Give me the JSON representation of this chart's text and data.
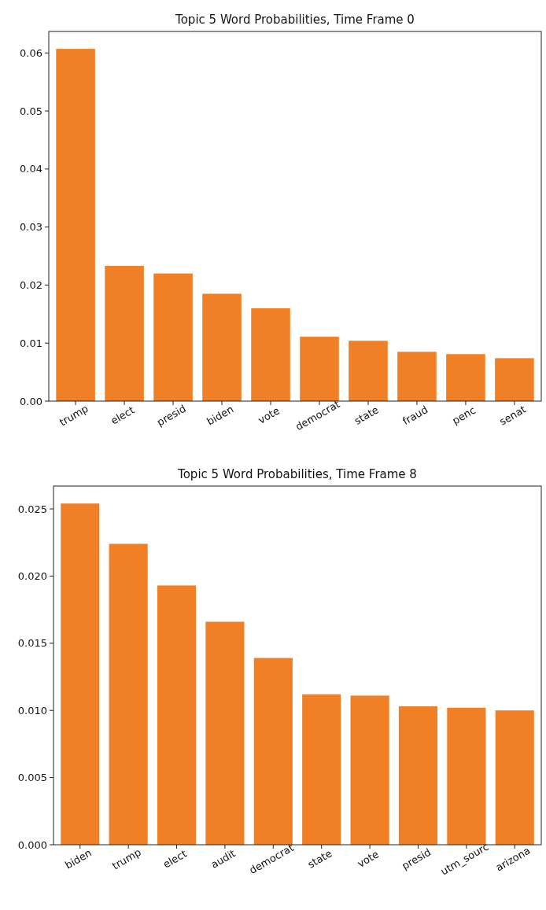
{
  "chart_data": [
    {
      "type": "bar",
      "title": "Topic 5 Word Probabilities, Time Frame 0",
      "categories": [
        "trump",
        "elect",
        "presid",
        "biden",
        "vote",
        "democrat",
        "state",
        "fraud",
        "penc",
        "senat"
      ],
      "values": [
        0.0607,
        0.0233,
        0.022,
        0.0185,
        0.016,
        0.0111,
        0.0104,
        0.0085,
        0.0081,
        0.0074
      ],
      "color": "#f07f26",
      "ylim": [
        0,
        0.0637
      ],
      "yticks": [
        {
          "value": 0,
          "label": "0.00"
        },
        {
          "value": 0.01,
          "label": "0.01"
        },
        {
          "value": 0.02,
          "label": "0.02"
        },
        {
          "value": 0.03,
          "label": "0.03"
        },
        {
          "value": 0.04,
          "label": "0.04"
        },
        {
          "value": 0.05,
          "label": "0.05"
        },
        {
          "value": 0.06,
          "label": "0.06"
        }
      ],
      "grid": false
    },
    {
      "type": "bar",
      "title": "Topic 5 Word Probabilities, Time Frame 8",
      "categories": [
        "biden",
        "trump",
        "elect",
        "audit",
        "democrat",
        "state",
        "vote",
        "presid",
        "utm_sourc",
        "arizona"
      ],
      "values": [
        0.0254,
        0.0224,
        0.0193,
        0.0166,
        0.0139,
        0.0112,
        0.0111,
        0.0103,
        0.0102,
        0.01
      ],
      "color": "#f07f26",
      "ylim": [
        0,
        0.0267
      ],
      "yticks": [
        {
          "value": 0,
          "label": "0.000"
        },
        {
          "value": 0.005,
          "label": "0.005"
        },
        {
          "value": 0.01,
          "label": "0.010"
        },
        {
          "value": 0.015,
          "label": "0.015"
        },
        {
          "value": 0.02,
          "label": "0.020"
        },
        {
          "value": 0.025,
          "label": "0.025"
        }
      ],
      "grid": false
    }
  ]
}
